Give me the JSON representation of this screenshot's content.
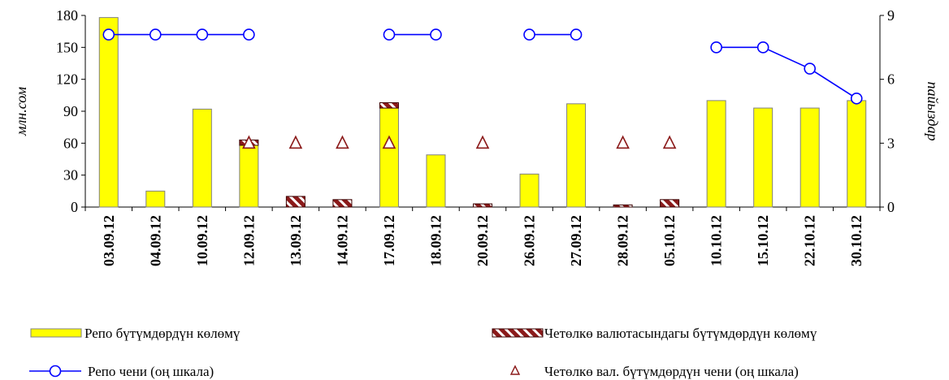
{
  "chart_data": {
    "type": "bar",
    "categories": [
      "03.09.12",
      "04.09.12",
      "10.09.12",
      "12.09.12",
      "13.09.12",
      "14.09.12",
      "17.09.12",
      "18.09.12",
      "20.09.12",
      "26.09.12",
      "27.09.12",
      "28.09.12",
      "05.10.12",
      "10.10.12",
      "15.10.12",
      "22.10.12",
      "30.10.12"
    ],
    "ylabel": "млн.сом",
    "y2label": "пайыздар",
    "ylim": [
      0,
      180
    ],
    "y2lim": [
      0,
      9
    ],
    "yticks": [
      0,
      30,
      60,
      90,
      120,
      150,
      180
    ],
    "y2ticks": [
      0,
      3,
      6,
      9
    ],
    "grid": false,
    "legend_position": "bottom",
    "series": [
      {
        "name": "Репо бүтүмдөрдүн көлөмү",
        "kind": "bar",
        "axis": "left",
        "color": "#FFFF00",
        "values": [
          178,
          15,
          92,
          58,
          0,
          0,
          93,
          49,
          0,
          31,
          97,
          0,
          0,
          100,
          93,
          93,
          100
        ]
      },
      {
        "name": "Четөлкө валютасындагы бүтүмдөрдүн көлөмү",
        "kind": "bar-stacked",
        "axis": "left",
        "color": "#8B1A1A",
        "values": [
          0,
          0,
          0,
          5,
          10,
          7,
          5,
          0,
          3,
          0,
          0,
          2,
          7,
          0,
          0,
          0,
          0
        ]
      },
      {
        "name": "Репо чени (оң шкала)",
        "kind": "line",
        "axis": "right",
        "color": "#0000FF",
        "values": [
          8.1,
          8.1,
          8.1,
          8.1,
          null,
          null,
          8.1,
          8.1,
          null,
          8.1,
          8.1,
          null,
          null,
          7.5,
          7.5,
          6.5,
          5.1
        ]
      },
      {
        "name": "Четөлкө вал. бүтүмдөрдүн чени (оң шкала)",
        "kind": "marker",
        "axis": "right",
        "color": "#8B1A1A",
        "values": [
          null,
          null,
          null,
          3,
          3,
          3,
          3,
          null,
          3,
          null,
          null,
          3,
          3,
          null,
          null,
          null,
          null
        ]
      }
    ]
  }
}
